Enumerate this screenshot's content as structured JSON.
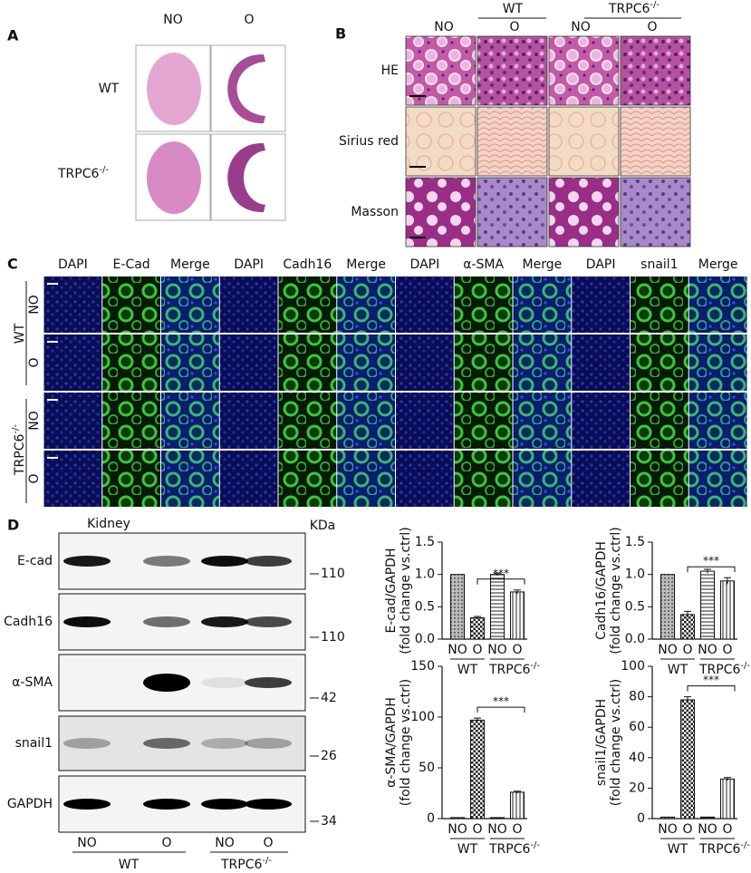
{
  "panel_a": {
    "label": "A",
    "columns": [
      "NO",
      "O"
    ],
    "rows": [
      {
        "text": "WT"
      },
      {
        "text": "TRPC6",
        "sup": "-/-"
      }
    ]
  },
  "panel_b": {
    "label": "B",
    "groups": [
      {
        "text": "WT"
      },
      {
        "text": "TRPC6",
        "sup": "-/-"
      }
    ],
    "columns": [
      "NO",
      "O",
      "NO",
      "O"
    ],
    "rows": [
      "HE",
      "Sirius red",
      "Masson"
    ]
  },
  "panel_c": {
    "label": "C",
    "columns": [
      "DAPI",
      "E-Cad",
      "Merge",
      "DAPI",
      "Cadh16",
      "Merge",
      "DAPI",
      "α-SMA",
      "Merge",
      "DAPI",
      "snail1",
      "Merge"
    ],
    "groups": [
      {
        "text": "WT"
      },
      {
        "text": "TRPC6",
        "sup": "-/-"
      }
    ],
    "rows": [
      "NO",
      "O",
      "NO",
      "O"
    ]
  },
  "panel_d": {
    "label": "D",
    "tissue": "Kidney",
    "mw_unit": "KDa",
    "proteins": [
      {
        "name": "E-cad",
        "mw": 110
      },
      {
        "name": "Cadh16",
        "mw": 110
      },
      {
        "name": "α-SMA",
        "mw": 42
      },
      {
        "name": "snail1",
        "mw": 26
      },
      {
        "name": "GAPDH",
        "mw": 34
      }
    ],
    "lanes": [
      "NO",
      "O",
      "NO",
      "O"
    ],
    "groups": [
      {
        "text": "WT"
      },
      {
        "text": "TRPC6",
        "sup": "-/-"
      }
    ]
  },
  "chart_data": [
    {
      "type": "bar",
      "ylabel": [
        "E-cad/GAPDH",
        "(fold change vs.ctrl)"
      ],
      "categories": [
        "NO",
        "O",
        "NO",
        "O"
      ],
      "groups": [
        {
          "text": "WT"
        },
        {
          "text": "TRPC6",
          "sup": "-/-"
        }
      ],
      "values": [
        1.0,
        0.33,
        1.0,
        0.73
      ],
      "errors": [
        0,
        0.02,
        0.02,
        0.03
      ],
      "ylim": [
        0,
        1.5
      ],
      "yticks": [
        {
          "value": 0,
          "label": "0.0"
        },
        0.5,
        {
          "value": 1,
          "label": "1.0"
        },
        1.5
      ],
      "significance": "***"
    },
    {
      "type": "bar",
      "ylabel": [
        "Cadh16/GAPDH",
        "(fold change vs.ctrl)"
      ],
      "categories": [
        "NO",
        "O",
        "NO",
        "O"
      ],
      "groups": [
        {
          "text": "WT"
        },
        {
          "text": "TRPC6",
          "sup": "-/-"
        }
      ],
      "values": [
        1.0,
        0.38,
        1.05,
        0.9
      ],
      "errors": [
        0,
        0.05,
        0.03,
        0.05
      ],
      "ylim": [
        0,
        1.5
      ],
      "yticks": [
        {
          "value": 0,
          "label": "0.0"
        },
        0.5,
        {
          "value": 1,
          "label": "1.0"
        },
        1.5
      ],
      "significance": "***"
    },
    {
      "type": "bar",
      "ylabel": [
        "α-SMA/GAPDH",
        "(fold change vs.ctrl)"
      ],
      "categories": [
        "NO",
        "O",
        "NO",
        "O"
      ],
      "groups": [
        {
          "text": "WT"
        },
        {
          "text": "TRPC6",
          "sup": "-/-"
        }
      ],
      "values": [
        1,
        97,
        1,
        26
      ],
      "errors": [
        0,
        2,
        0,
        1
      ],
      "ylim": [
        0,
        150
      ],
      "yticks": [
        0,
        50,
        100,
        150
      ],
      "significance": "***"
    },
    {
      "type": "bar",
      "ylabel": [
        "snail1/GAPDH",
        "(fold change vs.ctrl)"
      ],
      "categories": [
        "NO",
        "O",
        "NO",
        "O"
      ],
      "groups": [
        {
          "text": "WT"
        },
        {
          "text": "TRPC6",
          "sup": "-/-"
        }
      ],
      "values": [
        1,
        78,
        1,
        26
      ],
      "errors": [
        0,
        2,
        0,
        1
      ],
      "ylim": [
        0,
        100
      ],
      "yticks": [
        0,
        20,
        40,
        60,
        80,
        100
      ],
      "significance": "***"
    }
  ]
}
